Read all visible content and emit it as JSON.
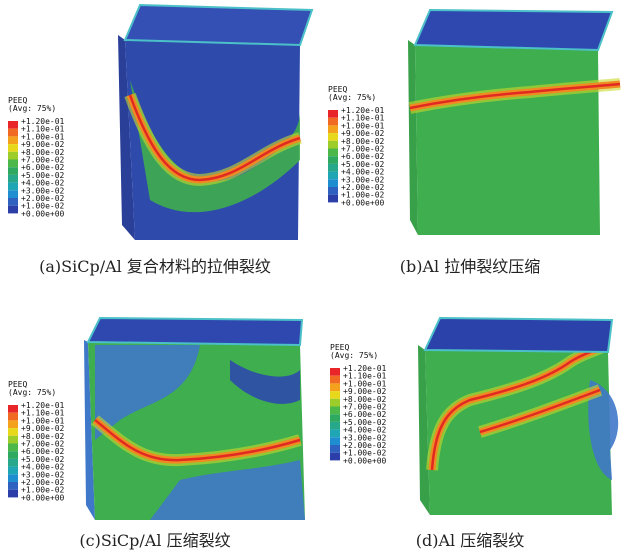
{
  "legend": {
    "title": "PEEQ",
    "subtitle": "(Avg: 75%)",
    "labels": [
      "+1.20e-01",
      "+1.10e-01",
      "+1.00e-01",
      "+9.00e-02",
      "+8.00e-02",
      "+7.00e-02",
      "+6.00e-02",
      "+5.00e-02",
      "+4.00e-02",
      "+3.00e-02",
      "+2.00e-02",
      "+1.00e-02",
      "+0.00e+00"
    ],
    "colors": [
      "#e8262a",
      "#f06a24",
      "#f4a21e",
      "#e8d81c",
      "#9ccd2a",
      "#4cb84a",
      "#2fa860",
      "#27a88a",
      "#1fa6b4",
      "#1f8ed0",
      "#2f62c0",
      "#2c3fa8"
    ]
  },
  "panels": [
    {
      "caption": "(a)SiCp/Al 复合材料的拉伸裂纹"
    },
    {
      "caption": "(b)Al 拉伸裂纹压缩"
    },
    {
      "caption": "(c)SiCp/Al 压缩裂纹"
    },
    {
      "caption": "(d)Al 压缩裂纹"
    }
  ]
}
